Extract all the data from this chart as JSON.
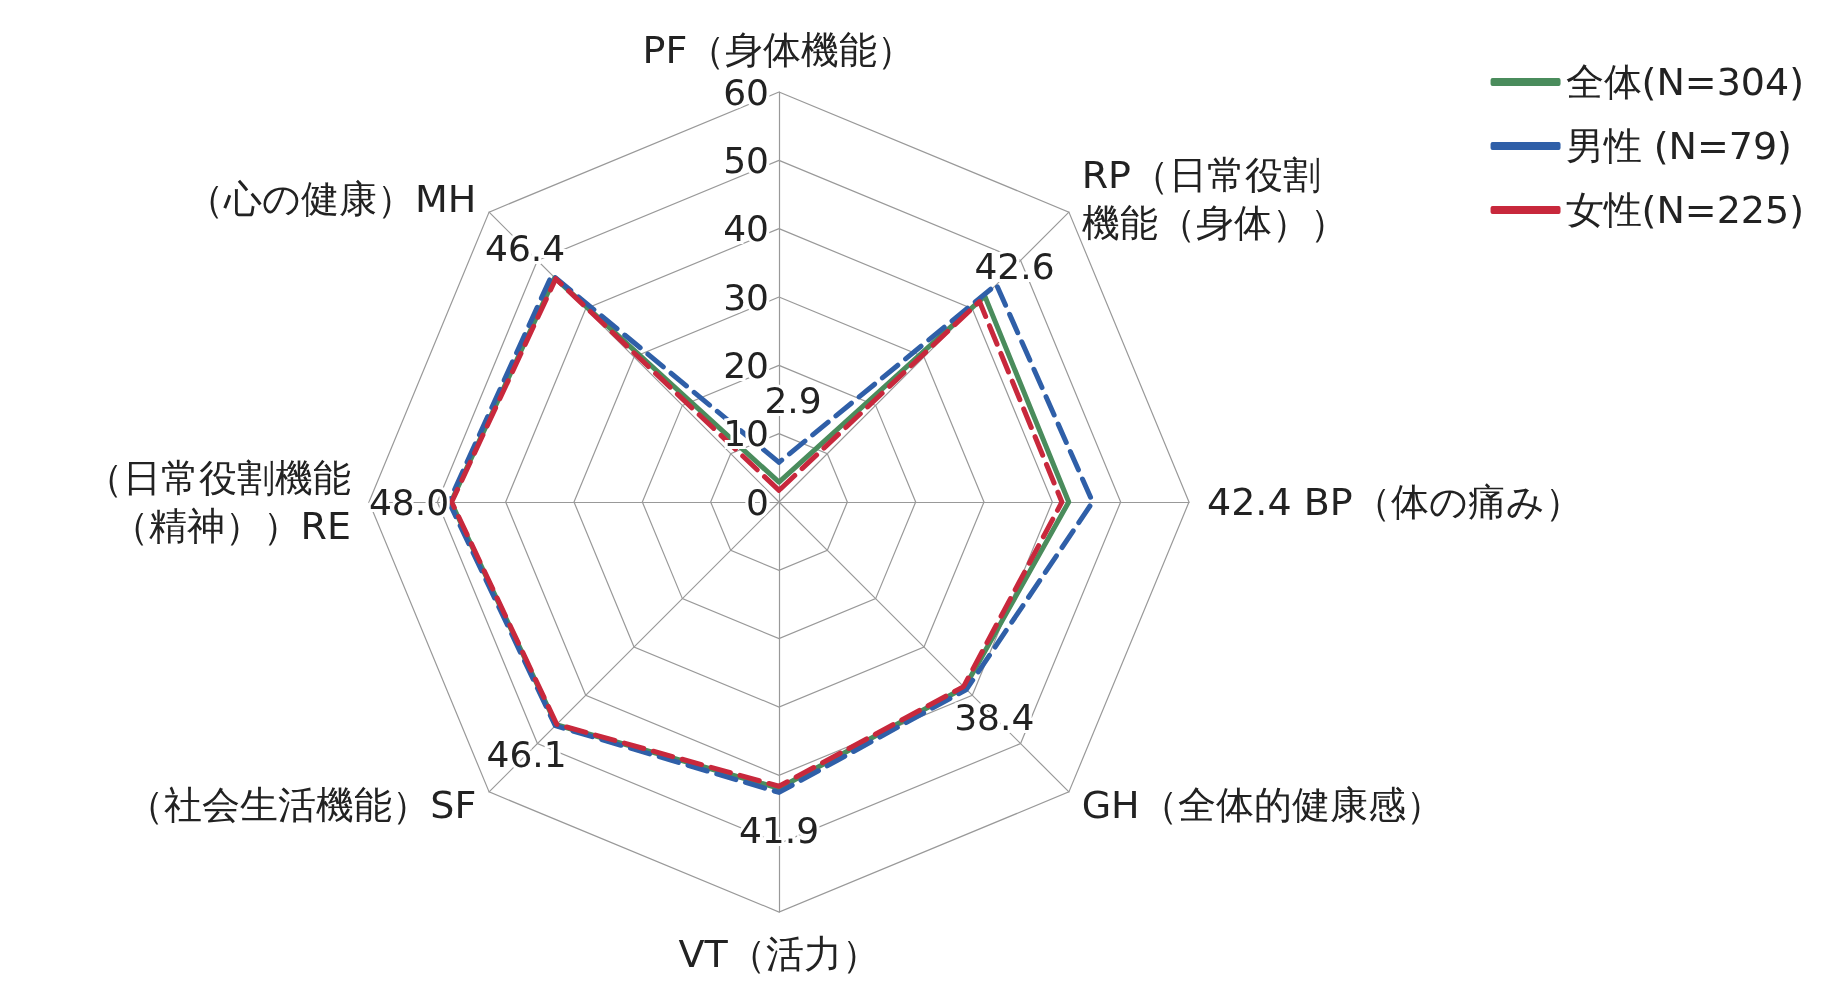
{
  "chart_data": {
    "type": "radar",
    "categories": [
      "PF（身体機能）",
      "RP（日常役割機能（身体））",
      "42.4 BP（体の痛み）",
      "GH（全体的健康感）",
      "VT（活力）",
      "（社会生活機能）SF",
      "（日常役割機能（精神））RE",
      "（心の健康）MH"
    ],
    "series": [
      {
        "name": "全体(N=304)",
        "color": "#4a8c5c",
        "line_style": "solid",
        "values": [
          2.9,
          42.6,
          42.4,
          38.4,
          41.9,
          46.1,
          48.0,
          46.4
        ],
        "value_labels": [
          "2.9",
          "42.6",
          null,
          "38.4",
          "41.9",
          "46.1",
          "48.0",
          "46.4"
        ]
      },
      {
        "name": "男性 (N=79)",
        "color": "#2f5fa8",
        "line_style": "dashed",
        "values": [
          5.8,
          45.0,
          45.9,
          38.8,
          42.5,
          46.3,
          48.3,
          47.0
        ]
      },
      {
        "name": "女性(N=225)",
        "color": "#c8283c",
        "line_style": "dashed",
        "values": [
          1.7,
          41.5,
          41.4,
          38.2,
          41.6,
          46.0,
          47.9,
          46.2
        ]
      }
    ],
    "ylim": [
      0,
      60
    ],
    "yticks": [
      0,
      10,
      20,
      30,
      40,
      50,
      60
    ],
    "grid": true,
    "legend": "top right",
    "marker": "none"
  }
}
